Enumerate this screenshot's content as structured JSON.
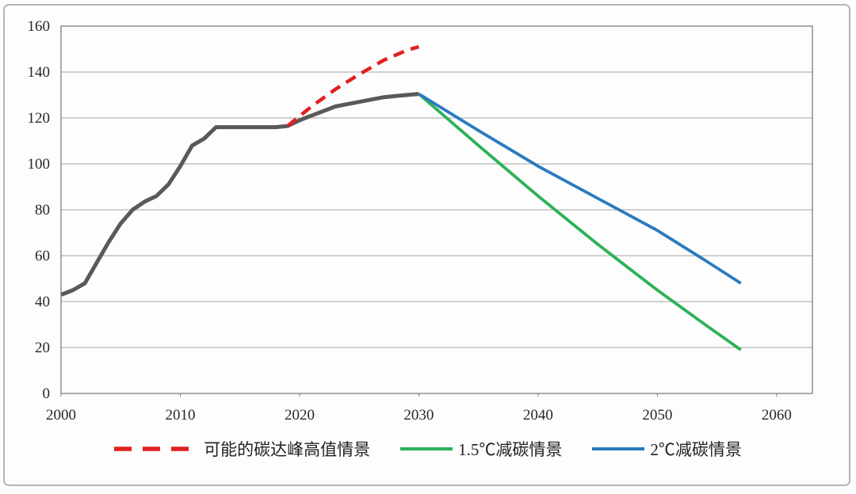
{
  "colors": {
    "grid": "#a3a3a3",
    "plot_border": "#7f7f7f",
    "tick_text": "#26262e",
    "historical_line": "#595959",
    "peak_scenario_red": "#e02020",
    "scenario_15c_green": "#2db157",
    "scenario_2c_blue": "#2a7abf"
  },
  "chart_data": {
    "type": "line",
    "title": "",
    "xlabel": "",
    "ylabel": "",
    "grid": true,
    "x_axis": {
      "range": [
        2000,
        2063
      ],
      "ticks": [
        2000,
        2010,
        2020,
        2030,
        2040,
        2050,
        2060
      ]
    },
    "y_axis": {
      "range": [
        0,
        160
      ],
      "ticks": [
        0,
        20,
        40,
        60,
        80,
        100,
        120,
        140,
        160
      ]
    },
    "legend": {
      "position": "bottom"
    },
    "series": [
      {
        "id": "historical-emissions",
        "name": "",
        "legend": false,
        "color": "#595959",
        "width": 5,
        "dash": "",
        "points": [
          [
            2000,
            43
          ],
          [
            2001,
            45
          ],
          [
            2002,
            48
          ],
          [
            2003,
            57
          ],
          [
            2004,
            66
          ],
          [
            2005,
            74
          ],
          [
            2006,
            80
          ],
          [
            2007,
            83.5
          ],
          [
            2008,
            86
          ],
          [
            2009,
            91
          ],
          [
            2010,
            99
          ],
          [
            2011,
            108
          ],
          [
            2012,
            111
          ],
          [
            2013,
            116
          ],
          [
            2014,
            116
          ],
          [
            2015,
            116
          ],
          [
            2016,
            116
          ],
          [
            2017,
            116
          ],
          [
            2018,
            116
          ],
          [
            2019,
            116.5
          ],
          [
            2020,
            119
          ],
          [
            2021,
            121
          ],
          [
            2022,
            123
          ],
          [
            2023,
            125
          ],
          [
            2024,
            126
          ],
          [
            2025,
            127
          ],
          [
            2026,
            128
          ],
          [
            2027,
            129
          ],
          [
            2028,
            129.5
          ],
          [
            2029,
            130
          ],
          [
            2030,
            130.5
          ]
        ]
      },
      {
        "id": "peak-high-scenario",
        "name": "可能的碳达峰高值情景",
        "legend": true,
        "color": "#e02020",
        "width": 4.5,
        "dash": "14 9",
        "swatch_w": 106,
        "swatch_stroke": 5.5,
        "swatch_dash": "22 14",
        "points": [
          [
            2019,
            116.5
          ],
          [
            2021,
            125
          ],
          [
            2023,
            132.5
          ],
          [
            2025,
            139
          ],
          [
            2027,
            145
          ],
          [
            2029,
            149.5
          ],
          [
            2030,
            151
          ]
        ]
      },
      {
        "id": "scenario-1-5c",
        "name": "1.5℃减碳情景",
        "legend": true,
        "color": "#2db157",
        "width": 3.8,
        "dash": "",
        "swatch_w": 66,
        "swatch_stroke": 4,
        "swatch_dash": "",
        "points": [
          [
            2030,
            130.5
          ],
          [
            2035,
            108
          ],
          [
            2040,
            86
          ],
          [
            2045,
            65
          ],
          [
            2050,
            45
          ],
          [
            2054,
            30
          ],
          [
            2057,
            19
          ]
        ]
      },
      {
        "id": "scenario-2c",
        "name": "2℃减碳情景",
        "legend": true,
        "color": "#2a7abf",
        "width": 3.8,
        "dash": "",
        "swatch_w": 66,
        "swatch_stroke": 4,
        "swatch_dash": "",
        "points": [
          [
            2030,
            130.5
          ],
          [
            2035,
            114.5
          ],
          [
            2040,
            99
          ],
          [
            2045,
            85
          ],
          [
            2050,
            71
          ],
          [
            2054,
            58
          ],
          [
            2057,
            48
          ]
        ]
      }
    ]
  }
}
